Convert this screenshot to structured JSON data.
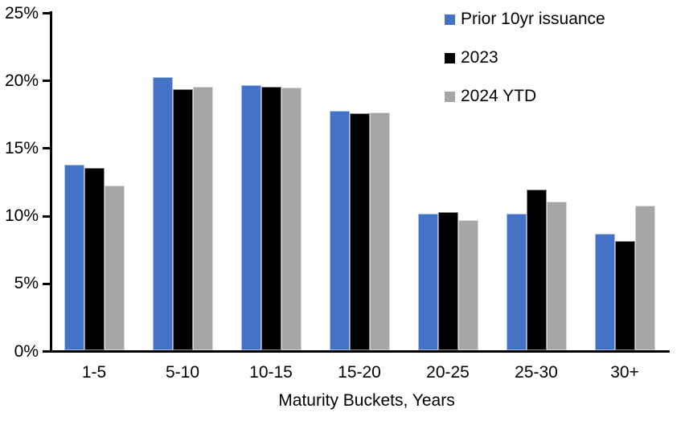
{
  "chart_data": {
    "type": "bar",
    "title": "",
    "xlabel": "Maturity Buckets, Years",
    "ylabel": "",
    "categories": [
      "1-5",
      "5-10",
      "10-15",
      "15-20",
      "20-25",
      "25-30",
      "30+"
    ],
    "series": [
      {
        "name": "Prior 10yr issuance",
        "color": "#4472C4",
        "values": [
          13.7,
          20.2,
          19.6,
          17.7,
          10.1,
          10.1,
          8.6
        ]
      },
      {
        "name": "2023",
        "color": "#000000",
        "values": [
          13.5,
          19.3,
          19.5,
          17.5,
          10.2,
          11.9,
          8.1
        ]
      },
      {
        "name": "2024 YTD",
        "color": "#A6A6A6",
        "values": [
          12.2,
          19.5,
          19.4,
          17.6,
          9.6,
          11.0,
          10.7
        ]
      }
    ],
    "ylim": [
      0,
      25
    ],
    "ytick_step": 5,
    "ytick_labels": [
      "0%",
      "5%",
      "10%",
      "15%",
      "20%",
      "25%"
    ],
    "grid": false,
    "legend_position": "top-right",
    "axis_color": "#000000"
  }
}
